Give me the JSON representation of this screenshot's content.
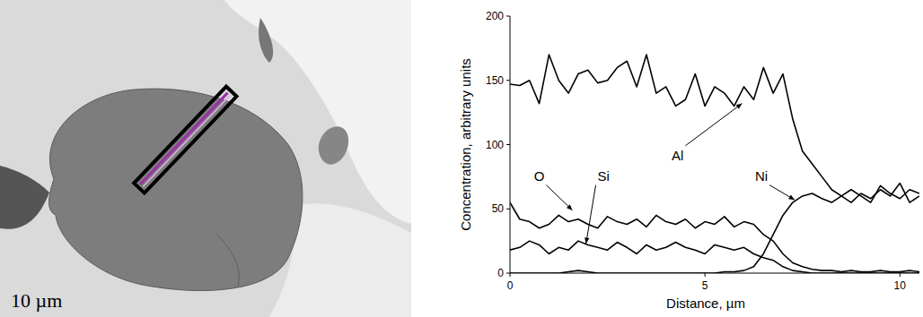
{
  "chart_data": {
    "type": "line",
    "x_label": "Distance, µm",
    "y_label": "Concentration, arbitrary units",
    "x": [
      0,
      0.25,
      0.5,
      0.75,
      1,
      1.25,
      1.5,
      1.75,
      2,
      2.25,
      2.5,
      2.75,
      3,
      3.25,
      3.5,
      3.75,
      4,
      4.25,
      4.5,
      4.75,
      5,
      5.25,
      5.5,
      5.75,
      6,
      6.25,
      6.5,
      6.75,
      7,
      7.25,
      7.5,
      7.75,
      8,
      8.25,
      8.5,
      8.75,
      9,
      9.25,
      9.5,
      9.75,
      10,
      10.25,
      10.5
    ],
    "series": [
      {
        "name": "Al",
        "color": "#000000",
        "values": [
          147,
          146,
          150,
          132,
          170,
          150,
          140,
          155,
          158,
          148,
          150,
          160,
          165,
          145,
          170,
          140,
          145,
          130,
          135,
          155,
          130,
          145,
          140,
          130,
          145,
          135,
          160,
          140,
          155,
          120,
          95,
          85,
          75,
          65,
          60,
          55,
          62,
          58,
          65,
          60,
          70,
          55,
          60
        ]
      },
      {
        "name": "O",
        "color": "#000000",
        "values": [
          55,
          42,
          40,
          35,
          38,
          45,
          40,
          42,
          38,
          35,
          44,
          40,
          38,
          42,
          36,
          45,
          40,
          38,
          42,
          35,
          40,
          38,
          44,
          36,
          40,
          38,
          30,
          25,
          15,
          8,
          5,
          3,
          2,
          2,
          1,
          2,
          1,
          1,
          2,
          1,
          1,
          2,
          1
        ]
      },
      {
        "name": "Si",
        "color": "#000000",
        "values": [
          18,
          20,
          25,
          22,
          15,
          20,
          18,
          25,
          22,
          20,
          18,
          24,
          20,
          15,
          22,
          18,
          20,
          24,
          20,
          18,
          15,
          22,
          20,
          18,
          20,
          15,
          12,
          10,
          5,
          2,
          1,
          0,
          0,
          0,
          0,
          0,
          0,
          0,
          0,
          0,
          0,
          0,
          0
        ]
      },
      {
        "name": "Ni",
        "color": "#000000",
        "values": [
          0,
          0,
          0,
          0,
          0,
          0,
          1,
          2,
          1,
          0,
          0,
          0,
          0,
          0,
          0,
          0,
          0,
          0,
          0,
          0,
          0,
          0,
          1,
          1,
          2,
          5,
          15,
          30,
          45,
          55,
          60,
          62,
          58,
          55,
          60,
          65,
          60,
          55,
          68,
          62,
          58,
          65,
          62
        ]
      }
    ],
    "xlim": [
      0,
      10.5
    ],
    "xticks": [
      0,
      5,
      10
    ],
    "ylim": [
      0,
      200
    ],
    "yticks": [
      0,
      50,
      100,
      150,
      200
    ],
    "grid": false
  },
  "micrograph": {
    "scale_label": "10 µm"
  }
}
